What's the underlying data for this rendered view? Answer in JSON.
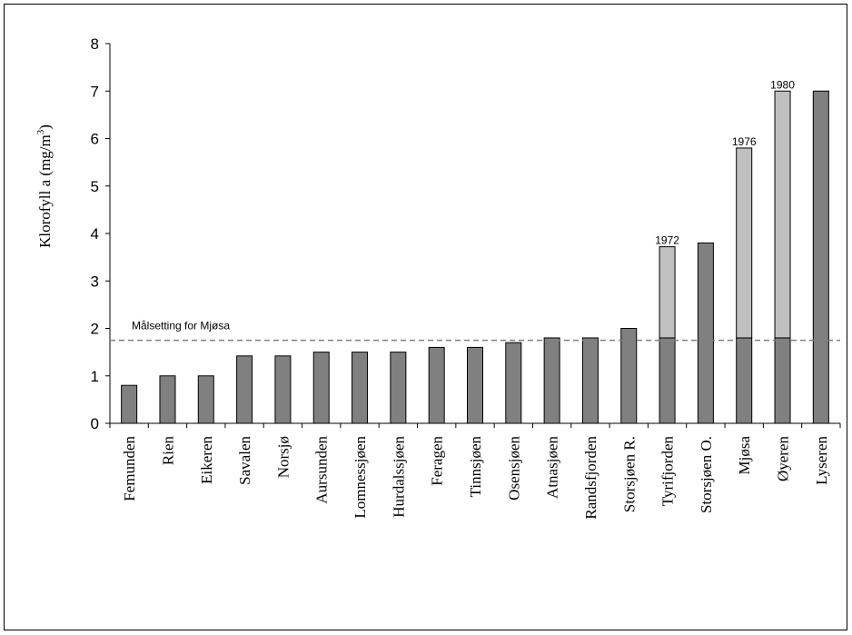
{
  "chart_data": {
    "type": "bar",
    "stacked": true,
    "ylabel_main": "Klorofyll a (mg/m",
    "ylabel_sup": "3",
    "ylabel_end": ")",
    "ylim": [
      0,
      8
    ],
    "yticks": [
      "0",
      "1",
      "2",
      "3",
      "4",
      "5",
      "6",
      "7",
      "8"
    ],
    "grid": false,
    "categories": [
      "Femunden",
      "Rien",
      "Eikeren",
      "Savalen",
      "Norsjø",
      "Aursunden",
      "Lomnessjøen",
      "Hurdalssjøen",
      "Feragen",
      "Tinnsjøen",
      "Osensjøen",
      "Atnasjøen",
      "Randsfjorden",
      "Storsjøen R.",
      "Tyrifjorden",
      "Storsjøen O.",
      "Mjøsa",
      "Øyeren",
      "Lyseren"
    ],
    "series": [
      {
        "values": [
          0.8,
          1.0,
          1.0,
          1.42,
          1.42,
          1.5,
          1.5,
          1.5,
          1.6,
          1.6,
          1.7,
          1.8,
          1.8,
          2.0,
          1.8,
          3.8,
          1.8,
          1.8,
          7.0
        ],
        "color": "#808080"
      },
      {
        "values": [
          0,
          0,
          0,
          0,
          0,
          0,
          0,
          0,
          0,
          0,
          0,
          0,
          0,
          0,
          1.92,
          0,
          4.0,
          5.2,
          0
        ],
        "color": "#c0c0c0"
      }
    ],
    "bar_annotations": [
      {
        "category": "Tyrifjorden",
        "text": "1972"
      },
      {
        "category": "Mjøsa",
        "text": "1976"
      },
      {
        "category": "Øyeren",
        "text": "1980"
      }
    ],
    "reference_line": {
      "value": 1.75,
      "label": "Målsetting for Mjøsa",
      "style": "dashed",
      "color": "#808080"
    }
  }
}
